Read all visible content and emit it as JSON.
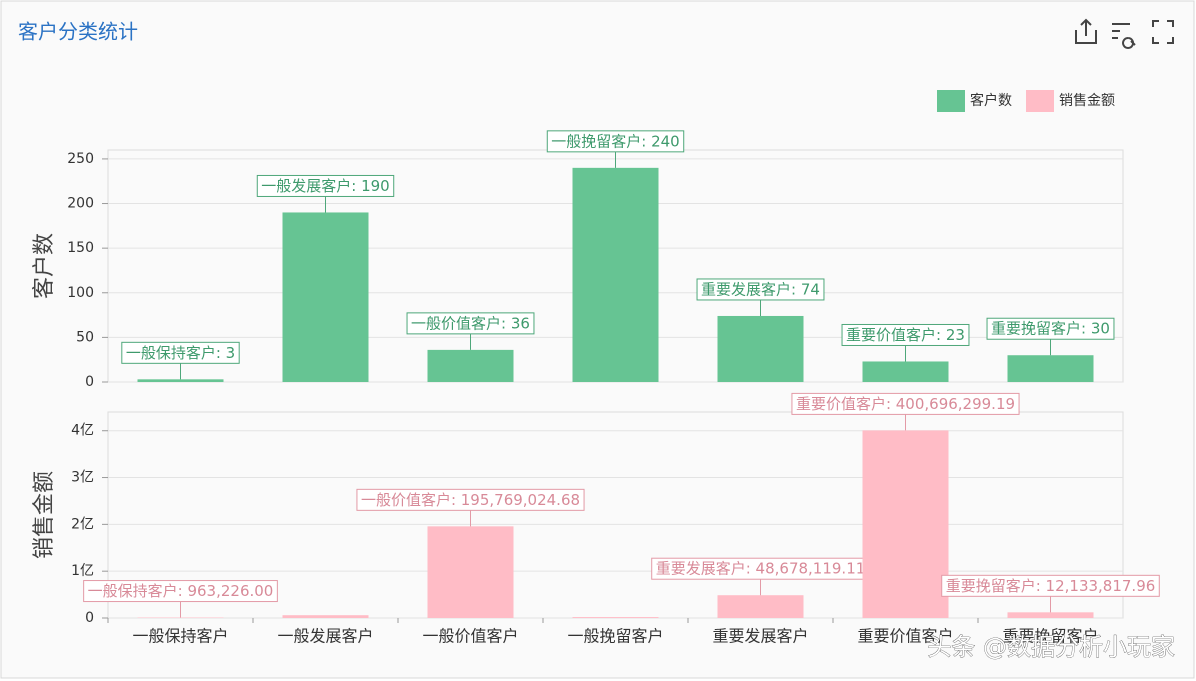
{
  "title": "客户分类统计",
  "watermark": "头条 @数据分析小玩家",
  "chart_data": [
    {
      "type": "bar",
      "ylabel": "客户数",
      "series_name": "客户数",
      "color": "#66c493",
      "categories": [
        "一般保持客户",
        "一般发展客户",
        "一般价值客户",
        "一般挽留客户",
        "重要发展客户",
        "重要价值客户",
        "重要挽留客户"
      ],
      "values": [
        3,
        190,
        36,
        240,
        74,
        23,
        30
      ],
      "value_labels": [
        "一般保持客户: 3",
        "一般发展客户: 190",
        "一般价值客户: 36",
        "一般挽留客户: 240",
        "重要发展客户: 74",
        "重要价值客户: 23",
        "重要挽留客户: 30"
      ],
      "ylim": [
        0,
        260
      ],
      "yticks": [
        0,
        50,
        100,
        150,
        200,
        250
      ],
      "grid": true
    },
    {
      "type": "bar",
      "ylabel": "销售金额",
      "series_name": "销售金额",
      "color": "#ffbcc6",
      "categories": [
        "一般保持客户",
        "一般发展客户",
        "一般价值客户",
        "一般挽留客户",
        "重要发展客户",
        "重要价值客户",
        "重要挽留客户"
      ],
      "values": [
        963226.0,
        6000000,
        195769024.68,
        2000000,
        48678119.11,
        400696299.19,
        12133817.96
      ],
      "value_labels": [
        "一般保持客户: 963,226.00",
        null,
        "一般价值客户: 195,769,024.68",
        null,
        "重要发展客户: 48,678,119.11",
        "重要价值客户: 400,696,299.19",
        "重要挽留客户: 12,133,817.96"
      ],
      "ylim": [
        0,
        440000000
      ],
      "yticks": [
        0,
        {
          "value": 100000000,
          "label": "1亿"
        },
        {
          "value": 200000000,
          "label": "2亿"
        },
        {
          "value": 300000000,
          "label": "3亿"
        },
        {
          "value": 400000000,
          "label": "4亿"
        }
      ],
      "grid": true
    }
  ]
}
